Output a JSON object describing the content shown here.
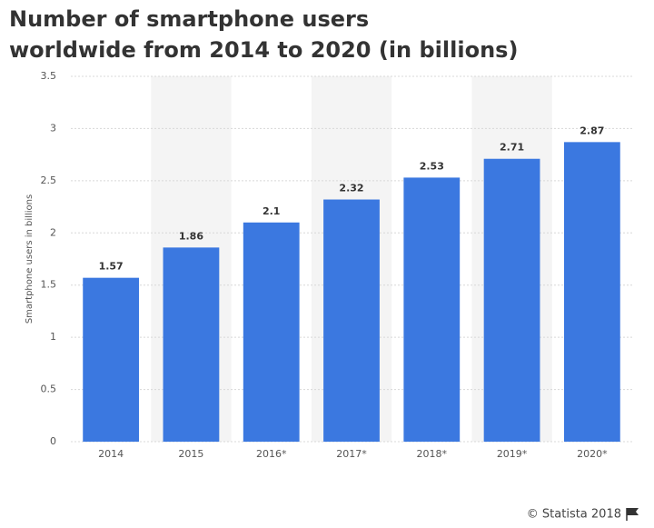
{
  "chart_data": {
    "type": "bar",
    "title": [
      "Number of smartphone users",
      "worldwide from 2014 to 2020 (in billions)"
    ],
    "y_label": "Smartphone users in billions",
    "categories": [
      "2014",
      "2015",
      "2016*",
      "2017*",
      "2018*",
      "2019*",
      "2020*"
    ],
    "values": [
      1.57,
      1.86,
      2.1,
      2.32,
      2.53,
      2.71,
      2.87
    ],
    "color": "#3b78e0",
    "ylim": [
      0,
      3.5
    ],
    "yticks": [
      0,
      0.5,
      1,
      1.5,
      2,
      2.5,
      3,
      3.5
    ],
    "grid": true,
    "source": "© Statista 2018"
  }
}
